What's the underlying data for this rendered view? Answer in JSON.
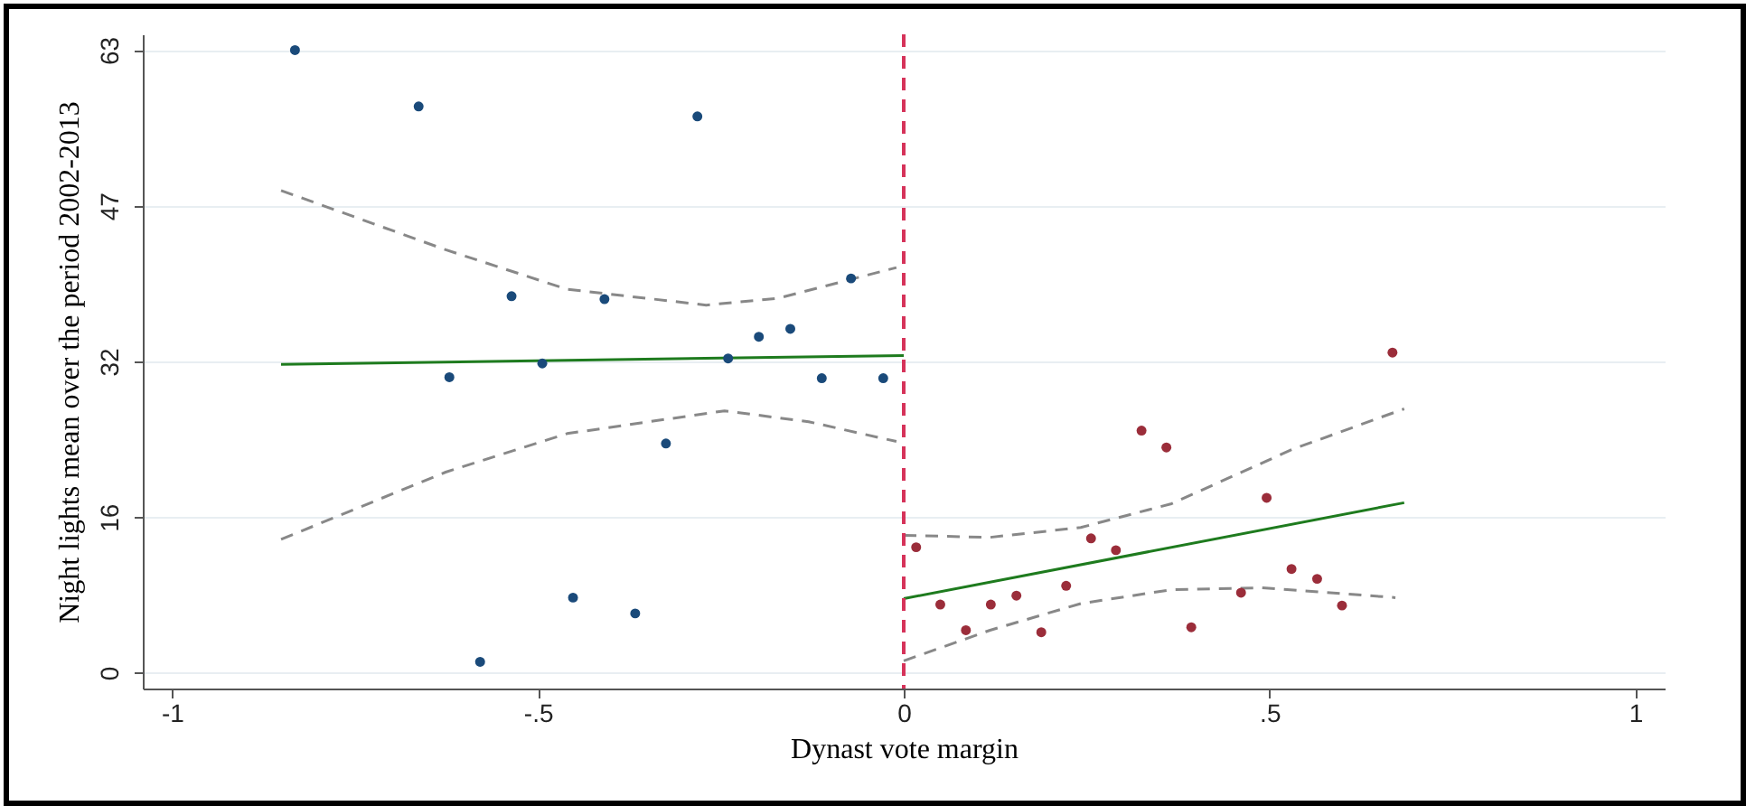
{
  "chart_data": {
    "type": "scatter",
    "xlabel": "Dynast vote margin",
    "ylabel": "Night lights mean over the period 2002-2013",
    "xlim": [
      -1.04,
      1.04
    ],
    "ylim": [
      -1.6,
      64.6
    ],
    "xticks": [
      {
        "value": -1,
        "label": "-1"
      },
      {
        "value": -0.5,
        "label": "-.5"
      },
      0,
      {
        "value": 0.5,
        "label": ".5"
      },
      1
    ],
    "yticks": [
      0,
      {
        "value": 15.75,
        "label": "16"
      },
      {
        "value": 31.5,
        "label": "32"
      },
      {
        "value": 47.25,
        "label": "47"
      },
      63
    ],
    "grid": "y",
    "ref_lines": [
      {
        "axis": "x",
        "value": 0,
        "color": "#d6335a",
        "line_style": "dashed"
      }
    ],
    "series": [
      {
        "type": "line",
        "color": "#888888",
        "line_style": "dashed",
        "x": [
          -0.851,
          -0.626,
          -0.46,
          -0.27,
          -0.171,
          -0.01
        ],
        "values": [
          48.8,
          42.8,
          38.8,
          37.2,
          37.9,
          41.0
        ]
      },
      {
        "type": "line",
        "color": "#888888",
        "line_style": "dashed",
        "x": [
          -0.851,
          -0.626,
          -0.46,
          -0.245,
          -0.13,
          -0.01
        ],
        "values": [
          13.5,
          20.3,
          24.2,
          26.5,
          25.4,
          23.4
        ]
      },
      {
        "type": "line",
        "color": "#888888",
        "line_style": "dashed",
        "x": [
          0,
          0.118,
          0.242,
          0.366,
          0.531,
          0.684
        ],
        "values": [
          13.9,
          13.7,
          14.7,
          17.1,
          22.6,
          26.7
        ]
      },
      {
        "type": "line",
        "color": "#888888",
        "line_style": "dashed",
        "x": [
          0,
          0.118,
          0.242,
          0.366,
          0.49,
          0.672
        ],
        "values": [
          1.2,
          4.3,
          7.0,
          8.4,
          8.6,
          7.6
        ]
      },
      {
        "type": "line",
        "color": "#1e7b1e",
        "line_style": "solid",
        "x": [
          -0.851,
          0
        ],
        "values": [
          31.2,
          32.1
        ]
      },
      {
        "type": "line",
        "color": "#1e7b1e",
        "line_style": "solid",
        "x": [
          0,
          0.684
        ],
        "values": [
          7.5,
          17.2
        ]
      },
      {
        "marker": "circle",
        "color": "#1a4a7a",
        "x": [
          -0.832,
          -0.663,
          -0.282,
          -0.536,
          -0.409,
          -0.072,
          -0.198,
          -0.155,
          -0.621,
          -0.494,
          -0.24,
          -0.112,
          -0.028,
          -0.325,
          -0.452,
          -0.367,
          -0.579
        ],
        "values": [
          63.0,
          57.3,
          56.3,
          38.1,
          37.8,
          39.9,
          34.0,
          34.8,
          29.9,
          31.3,
          31.8,
          29.8,
          29.8,
          23.2,
          7.6,
          6.0,
          1.1
        ]
      },
      {
        "marker": "circle",
        "color": "#9b2d3a",
        "x": [
          0.668,
          0.325,
          0.359,
          0.496,
          0.017,
          0.256,
          0.29,
          0.53,
          0.565,
          0.222,
          0.154,
          0.461,
          0.05,
          0.119,
          0.599,
          0.085,
          0.188,
          0.393
        ],
        "values": [
          32.4,
          24.5,
          22.8,
          17.7,
          12.7,
          13.6,
          12.4,
          10.5,
          9.5,
          8.8,
          7.8,
          8.1,
          6.9,
          6.9,
          6.8,
          4.3,
          4.1,
          4.6
        ]
      }
    ]
  }
}
